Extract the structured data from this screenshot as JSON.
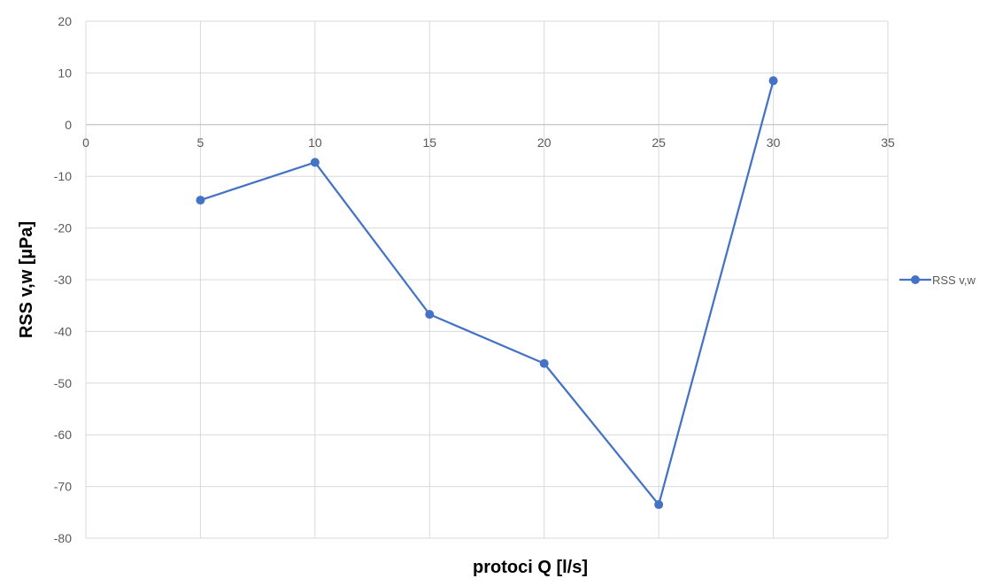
{
  "chart_data": {
    "type": "scatter",
    "title": "",
    "xlabel": "protoci Q [l/s]",
    "ylabel": "RSS v,w [µPa]",
    "xlim": [
      0,
      35
    ],
    "ylim": [
      -80,
      20
    ],
    "x_ticks": [
      0,
      5,
      10,
      15,
      20,
      25,
      30,
      35
    ],
    "y_ticks": [
      20,
      10,
      0,
      -10,
      -20,
      -30,
      -40,
      -50,
      -60,
      -70,
      -80
    ],
    "grid": true,
    "legend_position": "right",
    "series": [
      {
        "name": "RSS v,w",
        "color": "#4472C4",
        "marker": "circle",
        "line": true,
        "x": [
          5,
          10,
          15,
          20,
          25,
          30
        ],
        "y": [
          -14.6,
          -7.3,
          -36.7,
          -46.2,
          -73.5,
          8.5
        ]
      }
    ]
  }
}
